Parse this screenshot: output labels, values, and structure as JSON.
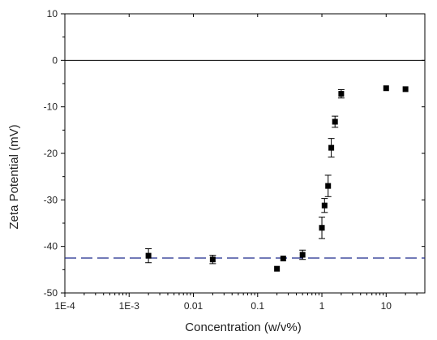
{
  "chart_data": {
    "type": "scatter",
    "title": "",
    "xlabel": "Concentration (w/v%)",
    "ylabel": "Zeta Potential (mV)",
    "x_scale": "log",
    "xlim": [
      0.0001,
      40
    ],
    "ylim": [
      -50,
      10
    ],
    "x_ticks": [
      {
        "value": 0.0001,
        "label": "1E-4"
      },
      {
        "value": 0.001,
        "label": "1E-3"
      },
      {
        "value": 0.01,
        "label": "0.01"
      },
      {
        "value": 0.1,
        "label": "0.1"
      },
      {
        "value": 1,
        "label": "1"
      },
      {
        "value": 10,
        "label": "10"
      }
    ],
    "y_ticks": [
      10,
      0,
      -10,
      -20,
      -30,
      -40,
      -50
    ],
    "zero_line": 0,
    "reference_line": {
      "y": -42.5,
      "style": "dashed",
      "color": "#1f2a8c"
    },
    "marker_color": "#000000",
    "points": [
      {
        "x": 0.002,
        "y": -42.0,
        "err": 1.5
      },
      {
        "x": 0.02,
        "y": -42.8,
        "err": 0.9
      },
      {
        "x": 0.2,
        "y": -44.8,
        "err": 0
      },
      {
        "x": 0.25,
        "y": -42.6,
        "err": 0
      },
      {
        "x": 0.5,
        "y": -41.8,
        "err": 1.0
      },
      {
        "x": 1.0,
        "y": -36.0,
        "err": 2.3
      },
      {
        "x": 1.1,
        "y": -31.2,
        "err": 1.5
      },
      {
        "x": 1.25,
        "y": -27.0,
        "err": 2.3
      },
      {
        "x": 1.4,
        "y": -18.8,
        "err": 2.0
      },
      {
        "x": 1.6,
        "y": -13.2,
        "err": 1.2
      },
      {
        "x": 2.0,
        "y": -7.2,
        "err": 0.9
      },
      {
        "x": 10,
        "y": -6.0,
        "err": 0
      },
      {
        "x": 20,
        "y": -6.2,
        "err": 0
      }
    ]
  }
}
